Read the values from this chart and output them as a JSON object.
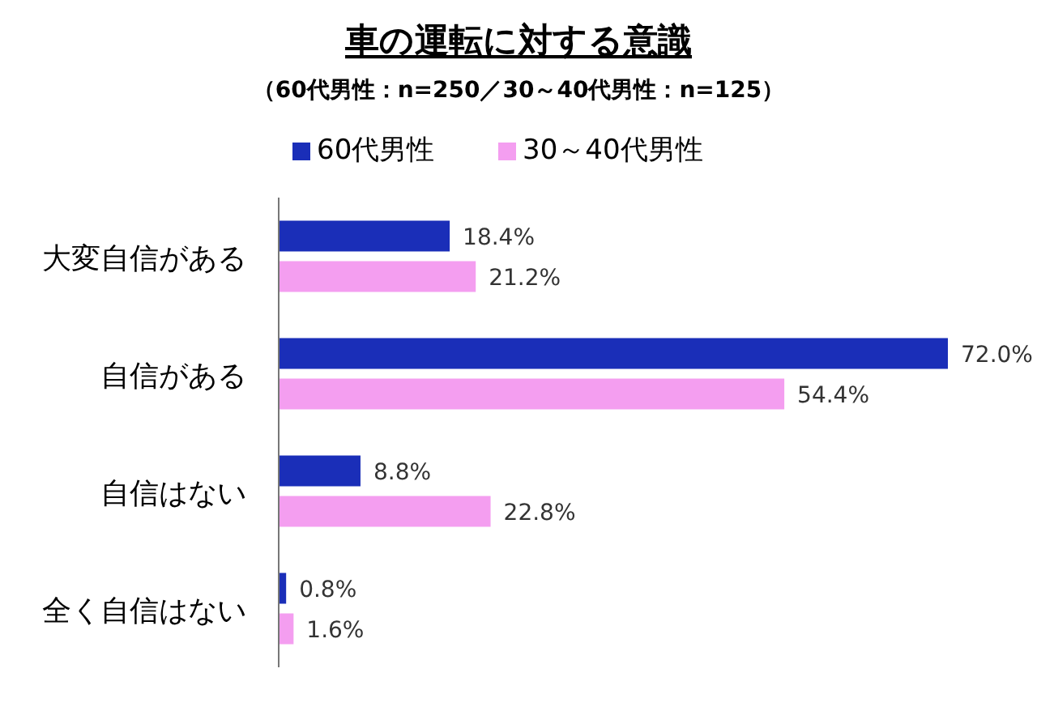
{
  "chart_data": {
    "type": "bar",
    "orientation": "horizontal",
    "title": "車の運転に対する意識",
    "subtitle": "（60代男性：n=250／30～40代男性：n=125）",
    "categories": [
      "大変自信がある",
      "自信がある",
      "自信はない",
      "全く自信はない"
    ],
    "legend": "top",
    "series": [
      {
        "name": "60代男性",
        "color": "#1a2eb8",
        "values": [
          18.4,
          72.0,
          8.8,
          0.8
        ],
        "value_labels": [
          "18.4%",
          "72.0%",
          "8.8%",
          "0.8%"
        ]
      },
      {
        "name": "30～40代男性",
        "color": "#f49ef0",
        "values": [
          21.2,
          54.4,
          22.8,
          1.6
        ],
        "value_labels": [
          "21.2%",
          "54.4%",
          "22.8%",
          "1.6%"
        ]
      }
    ]
  }
}
